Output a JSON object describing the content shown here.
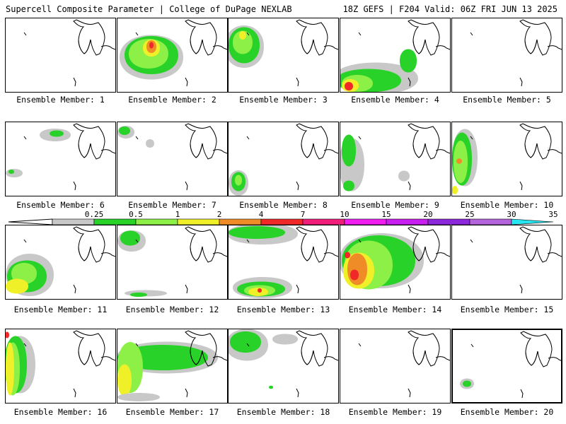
{
  "header": {
    "title": "Supercell Composite Parameter | College of DuPage NEXLAB",
    "run_info": "18Z GEFS | F204 Valid: 06Z FRI JUN 13 2025"
  },
  "members": [
    "Ensemble Member: 1",
    "Ensemble Member: 2",
    "Ensemble Member: 3",
    "Ensemble Member: 4",
    "Ensemble Member: 5",
    "Ensemble Member: 6",
    "Ensemble Member: 7",
    "Ensemble Member: 8",
    "Ensemble Member: 9",
    "Ensemble Member: 10",
    "Ensemble Member: 11",
    "Ensemble Member: 12",
    "Ensemble Member: 13",
    "Ensemble Member: 14",
    "Ensemble Member: 15",
    "Ensemble Member: 16",
    "Ensemble Member: 17",
    "Ensemble Member: 18",
    "Ensemble Member: 19",
    "Ensemble Member: 20"
  ],
  "colorbar": {
    "labels": [
      "0.25",
      "0.5",
      "1",
      "2",
      "4",
      "7",
      "10",
      "15",
      "20",
      "25",
      "30",
      "35"
    ],
    "colors": [
      "#c8c8c8",
      "#28d228",
      "#8cf046",
      "#f0f028",
      "#f08c28",
      "#f02828",
      "#f01e78",
      "#f01ef0",
      "#c81ef0",
      "#8c28dc",
      "#b464dc",
      "#28e6f0"
    ]
  },
  "shading_colors": {
    "gray": "#c8c8c8",
    "green": "#28d228",
    "lightgreen": "#8cf046",
    "yellow": "#f0f028",
    "orange": "#f08c28",
    "red": "#f02828"
  }
}
